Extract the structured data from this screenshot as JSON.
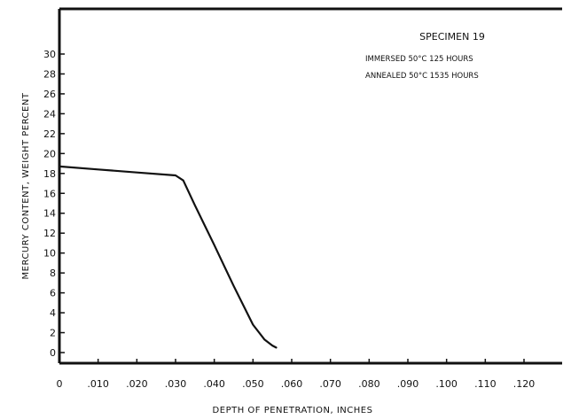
{
  "chart_data": {
    "type": "line",
    "title": "",
    "xlabel": "DEPTH OF PENETRATION, INCHES",
    "ylabel": "MERCURY CONTENT, WEIGHT PERCENT",
    "xlim": [
      0,
      0.13
    ],
    "ylim": [
      -1,
      33
    ],
    "x_ticks": [
      0,
      0.01,
      0.02,
      0.03,
      0.04,
      0.05,
      0.06,
      0.07,
      0.08,
      0.09,
      0.1,
      0.11,
      0.12
    ],
    "x_tick_labels": [
      "0",
      ".010",
      ".020",
      ".030",
      ".040",
      ".050",
      ".060",
      ".070",
      ".080",
      ".090",
      ".100",
      ".110",
      ".120"
    ],
    "y_ticks": [
      0,
      2,
      4,
      6,
      8,
      10,
      12,
      14,
      16,
      18,
      20,
      22,
      24,
      26,
      28,
      30
    ],
    "y_tick_labels": [
      "0",
      "2",
      "4",
      "6",
      "8",
      "10",
      "12",
      "14",
      "16",
      "18",
      "20",
      "22",
      "24",
      "26",
      "28",
      "30"
    ],
    "grid": false,
    "legend": "none",
    "annotations": [
      "SPECIMEN 19",
      "IMMERSED 50°C 125 HOURS",
      "ANNEALED 50°C 1535 HOURS"
    ],
    "series": [
      {
        "x": [
          0.0,
          0.01,
          0.02,
          0.03,
          0.032,
          0.035,
          0.04,
          0.045,
          0.05,
          0.053,
          0.055,
          0.056
        ],
        "y": [
          18.7,
          18.4,
          18.1,
          17.8,
          17.3,
          14.8,
          10.8,
          6.7,
          2.8,
          1.3,
          0.7,
          0.5
        ]
      }
    ]
  },
  "colors": {
    "ink": "#111111",
    "background": "#ffffff"
  }
}
